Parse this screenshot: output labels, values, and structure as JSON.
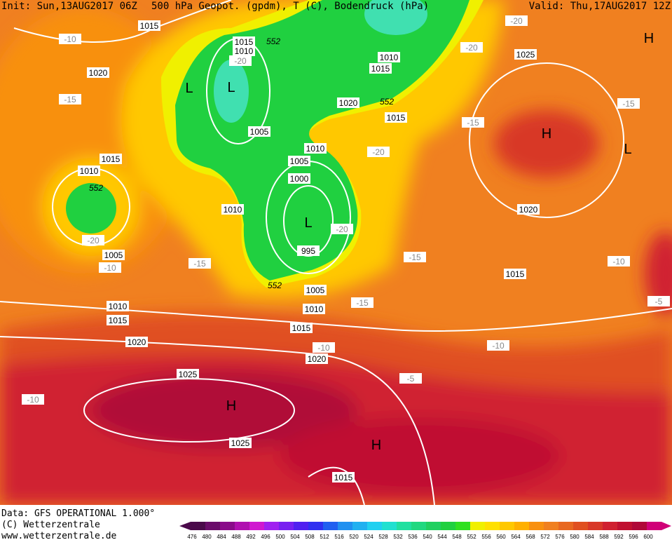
{
  "header": {
    "init": "Init: Sun,13AUG2017 06Z",
    "fields": "500 hPa Geopot. (gpdm), T (C), Bodendruck (hPa)",
    "valid": "Valid: Thu,17AUG2017 12Z"
  },
  "pressure_labels": [
    "1015",
    "1015",
    "1010",
    "1010",
    "1015",
    "1020",
    "1020",
    "1015",
    "1005",
    "1010",
    "1005",
    "1000",
    "995",
    "1010",
    "1015",
    "1010",
    "1005",
    "1005",
    "1010",
    "1010",
    "1015",
    "1015",
    "1020",
    "1020",
    "1025",
    "1025",
    "1015",
    "1025",
    "1020",
    "1015"
  ],
  "temperature_labels": [
    "-10",
    "-15",
    "-20",
    "-20",
    "-10",
    "-15",
    "-20",
    "-15",
    "-20",
    "-15",
    "-20",
    "-15",
    "-15",
    "-10",
    "-10",
    "-5",
    "-10",
    "-10",
    "-5",
    "-20"
  ],
  "centers": [
    "H",
    "L",
    "L",
    "H",
    "L",
    "L",
    "H",
    "H"
  ],
  "geopotential_labels": [
    "552",
    "552",
    "552",
    "552"
  ],
  "footer": {
    "data": "Data: GFS OPERATIONAL 1.000°",
    "copyright": "(C) Wetterzentrale",
    "url": "www.wetterzentrale.de"
  },
  "scale": {
    "values": [
      476,
      480,
      484,
      488,
      492,
      496,
      500,
      504,
      508,
      512,
      516,
      520,
      524,
      528,
      532,
      536,
      540,
      544,
      548,
      552,
      556,
      560,
      564,
      568,
      572,
      576,
      580,
      584,
      588,
      592,
      596,
      600
    ],
    "colors": [
      "#4a0a4a",
      "#6a0c6a",
      "#8a0c8a",
      "#b010b0",
      "#d018d0",
      "#a020f0",
      "#7820f0",
      "#5020f0",
      "#3030f0",
      "#2060f0",
      "#2090f0",
      "#20b0f0",
      "#20d0f0",
      "#20e0d0",
      "#20e0a0",
      "#20d880",
      "#20d060",
      "#20d040",
      "#30e020",
      "#f0f000",
      "#ffe000",
      "#ffc800",
      "#ffb000",
      "#f89010",
      "#f08020",
      "#e86820",
      "#e05020",
      "#d83828",
      "#d02030",
      "#c01030",
      "#b00838",
      "#d00078"
    ]
  }
}
